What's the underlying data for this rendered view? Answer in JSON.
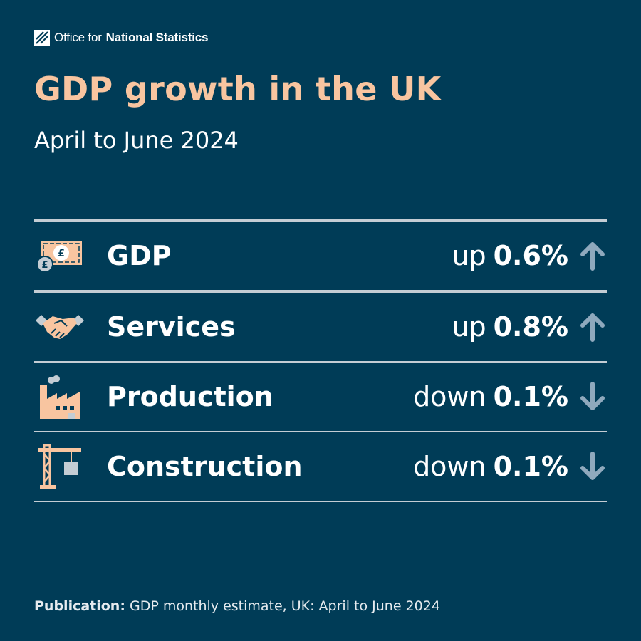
{
  "logo": {
    "name_light": "Office for",
    "name_bold": "National Statistics"
  },
  "title": "GDP growth in the UK",
  "subtitle": "April to June 2024",
  "rows": [
    {
      "label": "GDP",
      "direction": "up",
      "value": "0.6%",
      "icon": "money-icon",
      "arrow": "arrow-up-icon"
    },
    {
      "label": "Services",
      "direction": "up",
      "value": "0.8%",
      "icon": "handshake-icon",
      "arrow": "arrow-up-icon"
    },
    {
      "label": "Production",
      "direction": "down",
      "value": "0.1%",
      "icon": "factory-icon",
      "arrow": "arrow-down-icon"
    },
    {
      "label": "Construction",
      "direction": "down",
      "value": "0.1%",
      "icon": "crane-icon",
      "arrow": "arrow-down-icon"
    }
  ],
  "footer": {
    "label": "Publication:",
    "text": "GDP monthly estimate, UK: April to June 2024"
  },
  "colors": {
    "background": "#003c57",
    "title": "#f8c5a0",
    "icon": "#f8c5a0",
    "arrow": "#8fa9bd",
    "rule": "#c4cdd4"
  }
}
